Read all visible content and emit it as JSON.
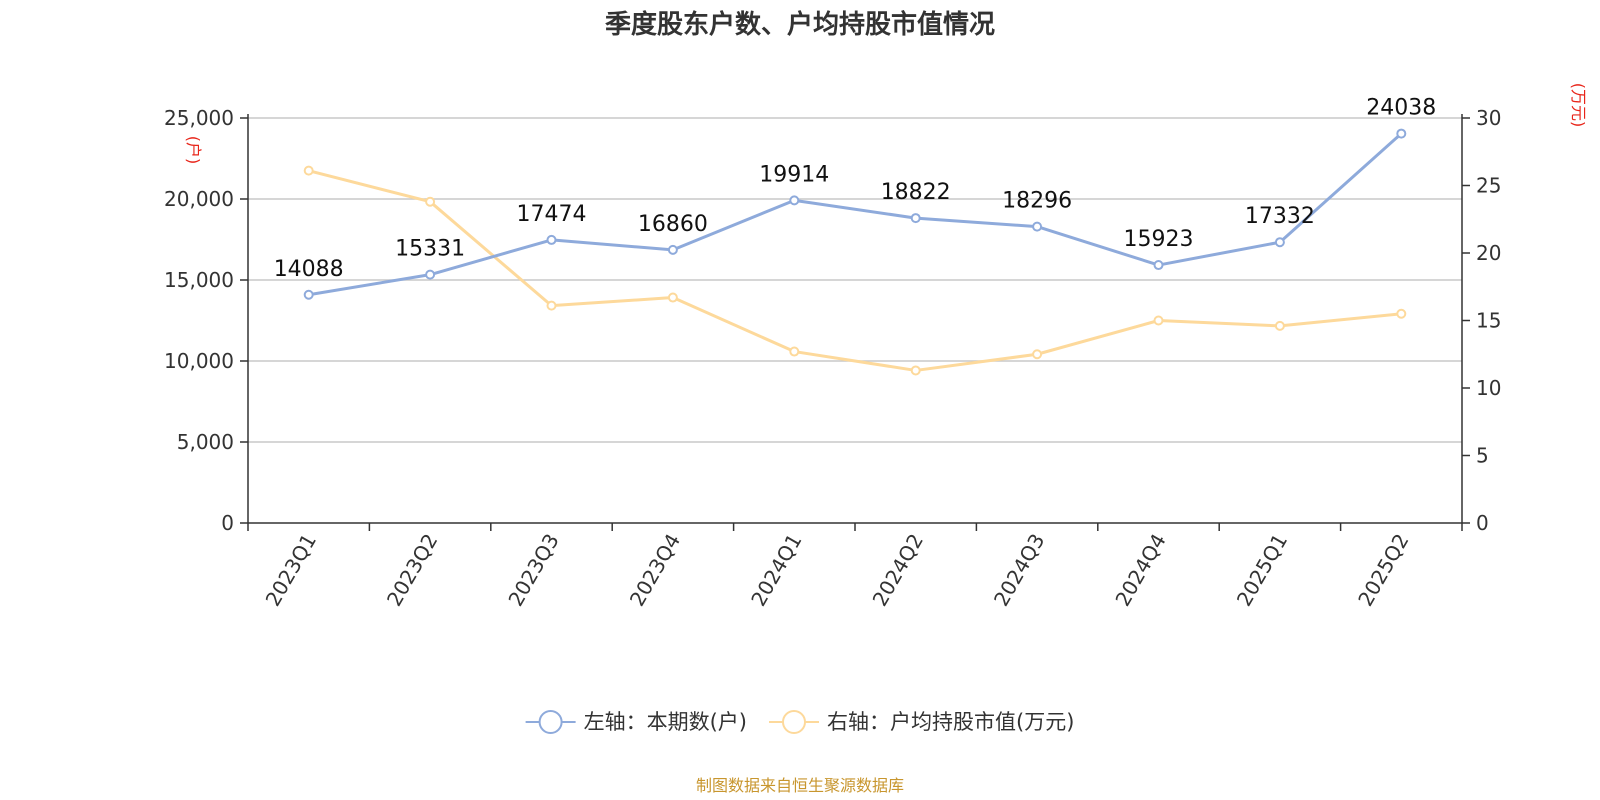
{
  "chart_data": {
    "type": "line",
    "title": "季度股东户数、户均持股市值情况",
    "categories": [
      "2023Q1",
      "2023Q2",
      "2023Q3",
      "2023Q4",
      "2024Q1",
      "2024Q2",
      "2024Q3",
      "2024Q4",
      "2025Q1",
      "2025Q2"
    ],
    "series": [
      {
        "name": "左轴：本期数(户)",
        "axis": "left",
        "color": "#8eaadb",
        "values": [
          14088,
          15331,
          17474,
          16860,
          19914,
          18822,
          18296,
          15923,
          17332,
          24038
        ],
        "data_labels": [
          "14088",
          "15331",
          "17474",
          "16860",
          "19914",
          "18822",
          "18296",
          "15923",
          "17332",
          "24038"
        ]
      },
      {
        "name": "右轴：户均持股市值(万元)",
        "axis": "right",
        "color": "#fdd99b",
        "values": [
          26.1,
          23.8,
          16.1,
          16.7,
          12.7,
          11.3,
          12.5,
          15.0,
          14.6,
          15.5
        ]
      }
    ],
    "left_axis": {
      "unit": "(户)",
      "ylim": [
        0,
        25000
      ],
      "ticks": [
        0,
        5000,
        10000,
        15000,
        20000,
        25000
      ],
      "tick_labels": [
        "0",
        "5,000",
        "10,000",
        "15,000",
        "20,000",
        "25,000"
      ]
    },
    "right_axis": {
      "unit": "(万元)",
      "ylim": [
        0,
        30
      ],
      "ticks": [
        0,
        5,
        10,
        15,
        20,
        25,
        30
      ],
      "tick_labels": [
        "0",
        "5",
        "10",
        "15",
        "20",
        "25",
        "30"
      ]
    },
    "grid": true,
    "legend_position": "bottom",
    "unit_color": "#e8251a",
    "source": "制图数据来自恒生聚源数据库",
    "source_color": "#c8962e"
  }
}
